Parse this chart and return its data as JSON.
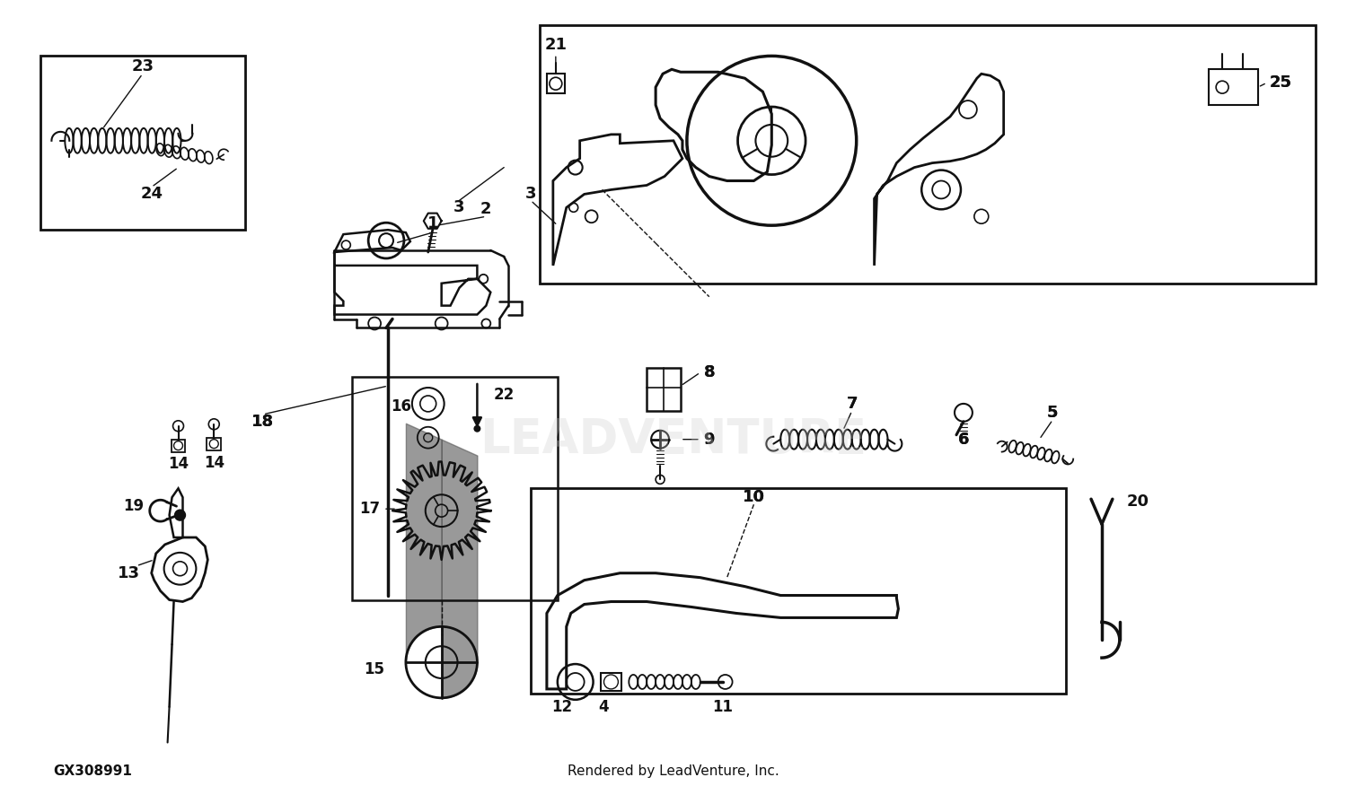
{
  "bg_color": "#ffffff",
  "fig_width": 15.0,
  "fig_height": 8.76,
  "part_number": "GX308991",
  "footer": "Rendered by LeadVenture, Inc.",
  "watermark": "LEADVENTURE"
}
